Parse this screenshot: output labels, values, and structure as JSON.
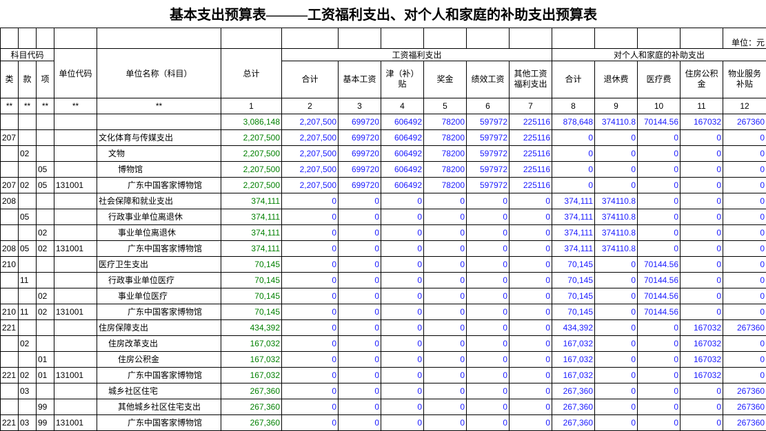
{
  "title": "基本支出预算表———工资福利支出、对个人和家庭的补助支出预算表",
  "unit": "单位：元",
  "header": {
    "subject_code": "科目代码",
    "code_columns": [
      "类",
      "款",
      "项"
    ],
    "unit_code": "单位代码",
    "unit_name": "单位名称（科目）",
    "total": "总计",
    "group1": {
      "title": "工资福利支出",
      "columns": [
        "合计",
        "基本工资",
        "津（补）贴",
        "奖金",
        "绩效工资",
        "其他工资福利支出"
      ]
    },
    "group2": {
      "title": "对个人和家庭的补助支出",
      "columns": [
        "合计",
        "退休费",
        "医疗费",
        "住房公积金",
        "物业服务补贴"
      ]
    }
  },
  "marker_row": {
    "stars": [
      "**",
      "**",
      "**",
      "**",
      "**"
    ],
    "numbers": [
      1,
      2,
      3,
      4,
      5,
      6,
      7,
      8,
      9,
      10,
      11,
      12
    ]
  },
  "rows": [
    [
      "",
      "",
      "",
      "",
      "",
      "3,086,148",
      "2,207,500",
      "699720",
      "606492",
      "78200",
      "597972",
      "225116",
      "878,648",
      "374110.8",
      "70144.56",
      "167032",
      "267360"
    ],
    [
      "207",
      "",
      "",
      "",
      "文化体育与传媒支出",
      "2,207,500",
      "2,207,500",
      "699720",
      "606492",
      "78200",
      "597972",
      "225116",
      "0",
      "0",
      "0",
      "0",
      "0"
    ],
    [
      "",
      "02",
      "",
      "",
      "文物",
      "2,207,500",
      "2,207,500",
      "699720",
      "606492",
      "78200",
      "597972",
      "225116",
      "0",
      "0",
      "0",
      "0",
      "0"
    ],
    [
      "",
      "",
      "05",
      "",
      "博物馆",
      "2,207,500",
      "2,207,500",
      "699720",
      "606492",
      "78200",
      "597972",
      "225116",
      "0",
      "0",
      "0",
      "0",
      "0"
    ],
    [
      "207",
      "02",
      "05",
      "131001",
      "广东中国客家博物馆",
      "2,207,500",
      "2,207,500",
      "699720",
      "606492",
      "78200",
      "597972",
      "225116",
      "0",
      "0",
      "0",
      "0",
      "0"
    ],
    [
      "208",
      "",
      "",
      "",
      "社会保障和就业支出",
      "374,111",
      "0",
      "0",
      "0",
      "0",
      "0",
      "0",
      "374,111",
      "374110.8",
      "0",
      "0",
      "0"
    ],
    [
      "",
      "05",
      "",
      "",
      "行政事业单位离退休",
      "374,111",
      "0",
      "0",
      "0",
      "0",
      "0",
      "0",
      "374,111",
      "374110.8",
      "0",
      "0",
      "0"
    ],
    [
      "",
      "",
      "02",
      "",
      "事业单位离退休",
      "374,111",
      "0",
      "0",
      "0",
      "0",
      "0",
      "0",
      "374,111",
      "374110.8",
      "0",
      "0",
      "0"
    ],
    [
      "208",
      "05",
      "02",
      "131001",
      "广东中国客家博物馆",
      "374,111",
      "0",
      "0",
      "0",
      "0",
      "0",
      "0",
      "374,111",
      "374110.8",
      "0",
      "0",
      "0"
    ],
    [
      "210",
      "",
      "",
      "",
      "医疗卫生支出",
      "70,145",
      "0",
      "0",
      "0",
      "0",
      "0",
      "0",
      "70,145",
      "0",
      "70144.56",
      "0",
      "0"
    ],
    [
      "",
      "11",
      "",
      "",
      "行政事业单位医疗",
      "70,145",
      "0",
      "0",
      "0",
      "0",
      "0",
      "0",
      "70,145",
      "0",
      "70144.56",
      "0",
      "0"
    ],
    [
      "",
      "",
      "02",
      "",
      "事业单位医疗",
      "70,145",
      "0",
      "0",
      "0",
      "0",
      "0",
      "0",
      "70,145",
      "0",
      "70144.56",
      "0",
      "0"
    ],
    [
      "210",
      "11",
      "02",
      "131001",
      "广东中国客家博物馆",
      "70,145",
      "0",
      "0",
      "0",
      "0",
      "0",
      "0",
      "70,145",
      "0",
      "70144.56",
      "0",
      "0"
    ],
    [
      "221",
      "",
      "",
      "",
      "住房保障支出",
      "434,392",
      "0",
      "0",
      "0",
      "0",
      "0",
      "0",
      "434,392",
      "0",
      "0",
      "167032",
      "267360"
    ],
    [
      "",
      "02",
      "",
      "",
      "住房改革支出",
      "167,032",
      "0",
      "0",
      "0",
      "0",
      "0",
      "0",
      "167,032",
      "0",
      "0",
      "167032",
      "0"
    ],
    [
      "",
      "",
      "01",
      "",
      "住房公积金",
      "167,032",
      "0",
      "0",
      "0",
      "0",
      "0",
      "0",
      "167,032",
      "0",
      "0",
      "167032",
      "0"
    ],
    [
      "221",
      "02",
      "01",
      "131001",
      "广东中国客家博物馆",
      "167,032",
      "0",
      "0",
      "0",
      "0",
      "0",
      "0",
      "167,032",
      "0",
      "0",
      "167032",
      "0"
    ],
    [
      "",
      "03",
      "",
      "",
      "城乡社区住宅",
      "267,360",
      "0",
      "0",
      "0",
      "0",
      "0",
      "0",
      "267,360",
      "0",
      "0",
      "0",
      "267360"
    ],
    [
      "",
      "",
      "99",
      "",
      "其他城乡社区住宅支出",
      "267,360",
      "0",
      "0",
      "0",
      "0",
      "0",
      "0",
      "267,360",
      "0",
      "0",
      "0",
      "267360"
    ],
    [
      "221",
      "03",
      "99",
      "131001",
      "广东中国客家博物馆",
      "267,360",
      "0",
      "0",
      "0",
      "0",
      "0",
      "0",
      "267,360",
      "0",
      "0",
      "0",
      "267360"
    ]
  ]
}
